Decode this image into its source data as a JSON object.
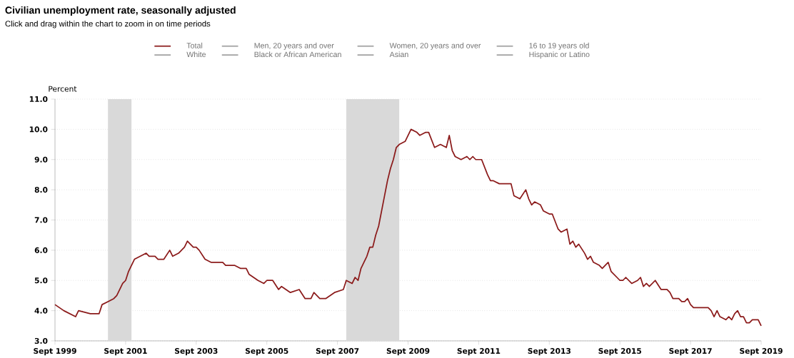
{
  "chart_data": {
    "type": "line",
    "title": "Civilian unemployment rate, seasonally adjusted",
    "subtitle": "Click and drag within the chart to zoom in on time periods",
    "ylabel": "Percent",
    "xlim": [
      "1999-09",
      "2019-09"
    ],
    "xticks": [
      {
        "value": "1999-09",
        "label": "Sept 1999"
      },
      {
        "value": "2001-09",
        "label": "Sept 2001"
      },
      {
        "value": "2003-09",
        "label": "Sept 2003"
      },
      {
        "value": "2005-09",
        "label": "Sept 2005"
      },
      {
        "value": "2007-09",
        "label": "Sept 2007"
      },
      {
        "value": "2009-09",
        "label": "Sept 2009"
      },
      {
        "value": "2011-09",
        "label": "Sept 2011"
      },
      {
        "value": "2013-09",
        "label": "Sept 2013"
      },
      {
        "value": "2015-09",
        "label": "Sept 2015"
      },
      {
        "value": "2017-09",
        "label": "Sept 2017"
      },
      {
        "value": "2019-09",
        "label": "Sept 2019"
      }
    ],
    "ylim": [
      3,
      11
    ],
    "yticks": [
      {
        "value": 3,
        "label": "3.0"
      },
      {
        "value": 4,
        "label": "4.0"
      },
      {
        "value": 5,
        "label": "5.0"
      },
      {
        "value": 6,
        "label": "6.0"
      },
      {
        "value": 7,
        "label": "7.0"
      },
      {
        "value": 8,
        "label": "8.0"
      },
      {
        "value": 9,
        "label": "9.0"
      },
      {
        "value": 10,
        "label": "10.0"
      },
      {
        "value": 11,
        "label": "11.0"
      }
    ],
    "grid": "y",
    "legend": "top",
    "marker": "none",
    "line_style": "solid",
    "bands": [
      {
        "axis": "x",
        "from": "2001-03",
        "to": "2001-11",
        "color": "#d9d9d9"
      },
      {
        "axis": "x",
        "from": "2007-12",
        "to": "2009-06",
        "color": "#d9d9d9"
      }
    ],
    "series": [
      {
        "name": "Total",
        "color": "#8b1a1a",
        "x": [
          "1999-09",
          "1999-12",
          "2000-04",
          "2000-05",
          "2000-09",
          "2000-12",
          "2001-01",
          "2001-03",
          "2001-05",
          "2001-06",
          "2001-08",
          "2001-09",
          "2001-10",
          "2001-12",
          "2002-04",
          "2002-05",
          "2002-07",
          "2002-08",
          "2002-10",
          "2002-12",
          "2003-01",
          "2003-03",
          "2003-05",
          "2003-06",
          "2003-08",
          "2003-09",
          "2003-10",
          "2003-12",
          "2004-02",
          "2004-04",
          "2004-06",
          "2004-07",
          "2004-10",
          "2004-12",
          "2005-02",
          "2005-03",
          "2005-06",
          "2005-08",
          "2005-09",
          "2005-11",
          "2006-01",
          "2006-02",
          "2006-05",
          "2006-08",
          "2006-10",
          "2006-12",
          "2007-01",
          "2007-03",
          "2007-05",
          "2007-08",
          "2007-11",
          "2007-12",
          "2008-02",
          "2008-03",
          "2008-04",
          "2008-05",
          "2008-07",
          "2008-08",
          "2008-09",
          "2008-10",
          "2008-11",
          "2008-12",
          "2009-01",
          "2009-02",
          "2009-03",
          "2009-04",
          "2009-05",
          "2009-06",
          "2009-08",
          "2009-10",
          "2009-12",
          "2010-01",
          "2010-03",
          "2010-04",
          "2010-06",
          "2010-08",
          "2010-10",
          "2010-11",
          "2010-12",
          "2011-01",
          "2011-03",
          "2011-05",
          "2011-06",
          "2011-07",
          "2011-08",
          "2011-10",
          "2011-12",
          "2012-01",
          "2012-02",
          "2012-04",
          "2012-08",
          "2012-09",
          "2012-11",
          "2013-01",
          "2013-02",
          "2013-03",
          "2013-04",
          "2013-06",
          "2013-07",
          "2013-09",
          "2013-10",
          "2013-12",
          "2014-01",
          "2014-03",
          "2014-04",
          "2014-05",
          "2014-06",
          "2014-07",
          "2014-09",
          "2014-10",
          "2014-11",
          "2014-12",
          "2015-02",
          "2015-03",
          "2015-05",
          "2015-06",
          "2015-08",
          "2015-09",
          "2015-10",
          "2015-11",
          "2016-01",
          "2016-03",
          "2016-04",
          "2016-05",
          "2016-06",
          "2016-07",
          "2016-09",
          "2016-11",
          "2017-01",
          "2017-02",
          "2017-03",
          "2017-05",
          "2017-06",
          "2017-07",
          "2017-08",
          "2017-09",
          "2017-10",
          "2017-12",
          "2018-03",
          "2018-04",
          "2018-05",
          "2018-06",
          "2018-07",
          "2018-09",
          "2018-10",
          "2018-11",
          "2018-12",
          "2019-01",
          "2019-02",
          "2019-03",
          "2019-04",
          "2019-05",
          "2019-06",
          "2019-08",
          "2019-09"
        ],
        "values": [
          4.2,
          4.0,
          3.8,
          4.0,
          3.9,
          3.9,
          4.2,
          4.3,
          4.4,
          4.5,
          4.9,
          5.0,
          5.3,
          5.7,
          5.9,
          5.8,
          5.8,
          5.7,
          5.7,
          6.0,
          5.8,
          5.9,
          6.1,
          6.3,
          6.1,
          6.1,
          6.0,
          5.7,
          5.6,
          5.6,
          5.6,
          5.5,
          5.5,
          5.4,
          5.4,
          5.2,
          5.0,
          4.9,
          5.0,
          5.0,
          4.7,
          4.8,
          4.6,
          4.7,
          4.4,
          4.4,
          4.6,
          4.4,
          4.4,
          4.6,
          4.7,
          5.0,
          4.9,
          5.1,
          5.0,
          5.4,
          5.8,
          6.1,
          6.1,
          6.5,
          6.8,
          7.3,
          7.8,
          8.3,
          8.7,
          9.0,
          9.4,
          9.5,
          9.6,
          10.0,
          9.9,
          9.8,
          9.9,
          9.9,
          9.4,
          9.5,
          9.4,
          9.8,
          9.3,
          9.1,
          9.0,
          9.1,
          9.0,
          9.1,
          9.0,
          9.0,
          8.5,
          8.3,
          8.3,
          8.2,
          8.2,
          7.8,
          7.7,
          8.0,
          7.7,
          7.5,
          7.6,
          7.5,
          7.3,
          7.2,
          7.2,
          6.7,
          6.6,
          6.7,
          6.2,
          6.3,
          6.1,
          6.2,
          5.9,
          5.7,
          5.8,
          5.6,
          5.5,
          5.4,
          5.6,
          5.3,
          5.1,
          5.0,
          5.0,
          5.1,
          4.9,
          5.0,
          5.1,
          4.8,
          4.9,
          4.8,
          5.0,
          4.7,
          4.7,
          4.6,
          4.4,
          4.4,
          4.3,
          4.3,
          4.4,
          4.2,
          4.1,
          4.1,
          4.1,
          4.0,
          3.8,
          4.0,
          3.8,
          3.7,
          3.8,
          3.7,
          3.9,
          4.0,
          3.8,
          3.8,
          3.6,
          3.6,
          3.7,
          3.7,
          3.5
        ]
      },
      {
        "name": "Men, 20 years and over",
        "color": "#a0a0a0"
      },
      {
        "name": "Women, 20 years and over",
        "color": "#a0a0a0"
      },
      {
        "name": "16 to 19 years old",
        "color": "#a0a0a0"
      },
      {
        "name": "White",
        "color": "#a0a0a0"
      },
      {
        "name": "Black or African American",
        "color": "#a0a0a0"
      },
      {
        "name": "Asian",
        "color": "#a0a0a0"
      },
      {
        "name": "Hispanic or Latino",
        "color": "#a0a0a0"
      }
    ]
  }
}
